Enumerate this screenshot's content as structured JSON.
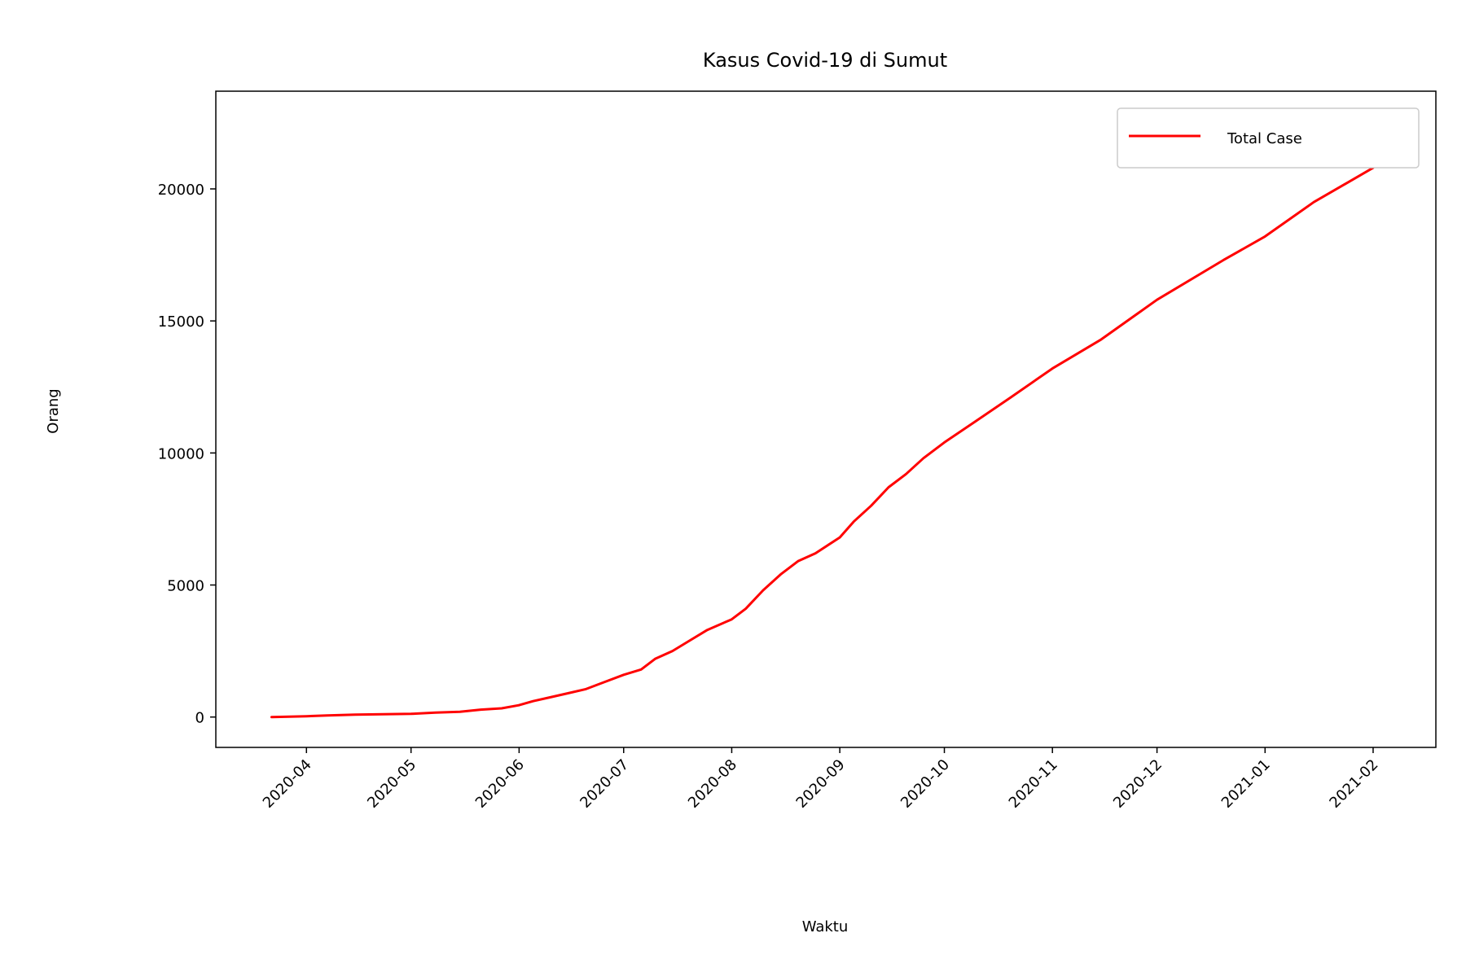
{
  "chart_data": {
    "type": "line",
    "title": "Kasus Covid-19 di Sumut",
    "xlabel": "Waktu",
    "ylabel": "Orang",
    "x_type": "date",
    "xlim": [
      "2020-03-06",
      "2021-02-19"
    ],
    "ylim": [
      -1150,
      23700
    ],
    "x_ticks": [
      "2020-04-01",
      "2020-05-01",
      "2020-06-01",
      "2020-07-01",
      "2020-08-01",
      "2020-09-01",
      "2020-10-01",
      "2020-11-01",
      "2020-12-01",
      "2021-01-01",
      "2021-02-01"
    ],
    "x_tick_labels": [
      "2020-04",
      "2020-05",
      "2020-06",
      "2020-07",
      "2020-08",
      "2020-09",
      "2020-10",
      "2020-11",
      "2020-12",
      "2021-01",
      "2021-02"
    ],
    "y_ticks": [
      0,
      5000,
      10000,
      15000,
      20000
    ],
    "y_tick_labels": [
      "0",
      "5000",
      "10000",
      "15000",
      "20000"
    ],
    "grid": false,
    "legend_position": "upper right",
    "series": [
      {
        "name": "Total Case",
        "color": "#ff0000",
        "x": [
          "2020-03-22",
          "2020-04-01",
          "2020-04-07",
          "2020-04-15",
          "2020-05-01",
          "2020-05-08",
          "2020-05-15",
          "2020-05-21",
          "2020-05-27",
          "2020-06-01",
          "2020-06-05",
          "2020-06-10",
          "2020-06-15",
          "2020-06-20",
          "2020-06-25",
          "2020-07-01",
          "2020-07-06",
          "2020-07-10",
          "2020-07-15",
          "2020-07-20",
          "2020-07-25",
          "2020-08-01",
          "2020-08-05",
          "2020-08-10",
          "2020-08-15",
          "2020-08-20",
          "2020-08-25",
          "2020-09-01",
          "2020-09-05",
          "2020-09-10",
          "2020-09-15",
          "2020-09-20",
          "2020-09-25",
          "2020-10-01",
          "2020-10-10",
          "2020-10-20",
          "2020-11-01",
          "2020-11-15",
          "2020-12-01",
          "2020-12-20",
          "2021-01-01",
          "2021-01-15",
          "2021-02-01",
          "2021-02-10"
        ],
        "values": [
          0,
          30,
          60,
          90,
          120,
          170,
          200,
          280,
          330,
          450,
          600,
          750,
          900,
          1050,
          1300,
          1600,
          1800,
          2200,
          2500,
          2900,
          3300,
          3700,
          4100,
          4800,
          5400,
          5900,
          6200,
          6800,
          7400,
          8000,
          8700,
          9200,
          9800,
          10400,
          11200,
          12100,
          13200,
          14300,
          15800,
          17300,
          18200,
          19500,
          20800,
          22600
        ]
      }
    ]
  }
}
